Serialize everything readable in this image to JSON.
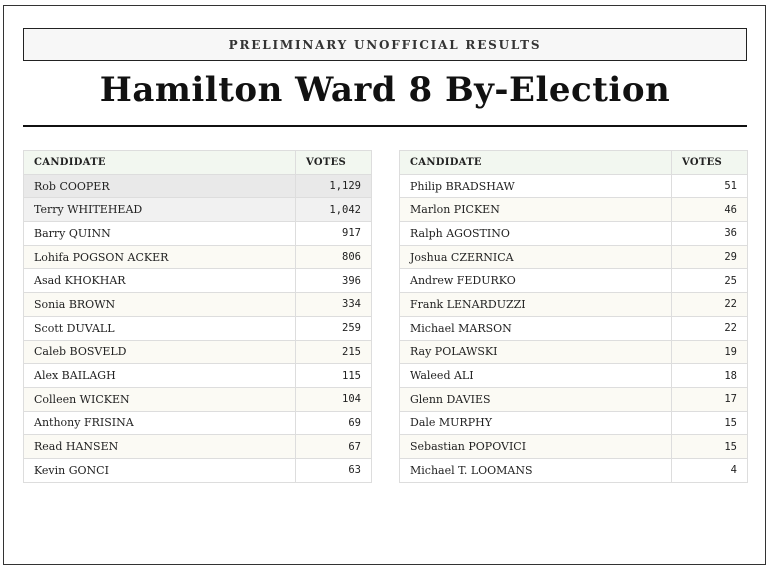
{
  "header": {
    "banner": "PRELIMINARY UNOFFICIAL RESULTS",
    "title": "Hamilton Ward 8 By-Election"
  },
  "tables": [
    {
      "columns": [
        "CANDIDATE",
        "VOTES"
      ],
      "rows": [
        [
          "Rob COOPER",
          "1,129"
        ],
        [
          "Terry WHITEHEAD",
          "1,042"
        ],
        [
          "Barry QUINN",
          "917"
        ],
        [
          "Lohifa POGSON ACKER",
          "806"
        ],
        [
          "Asad KHOKHAR",
          "396"
        ],
        [
          "Sonia BROWN",
          "334"
        ],
        [
          "Scott DUVALL",
          "259"
        ],
        [
          "Caleb BOSVELD",
          "215"
        ],
        [
          "Alex BAILAGH",
          "115"
        ],
        [
          "Colleen WICKEN",
          "104"
        ],
        [
          "Anthony FRISINA",
          "69"
        ],
        [
          "Read HANSEN",
          "67"
        ],
        [
          "Kevin GONCI",
          "63"
        ]
      ]
    },
    {
      "columns": [
        "CANDIDATE",
        "VOTES"
      ],
      "rows": [
        [
          "Philip BRADSHAW",
          "51"
        ],
        [
          "Marlon PICKEN",
          "46"
        ],
        [
          "Ralph AGOSTINO",
          "36"
        ],
        [
          "Joshua CZERNICA",
          "29"
        ],
        [
          "Andrew FEDURKO",
          "25"
        ],
        [
          "Frank LENARDUZZI",
          "22"
        ],
        [
          "Michael MARSON",
          "22"
        ],
        [
          "Ray POLAWSKI",
          "19"
        ],
        [
          "Waleed ALI",
          "18"
        ],
        [
          "Glenn DAVIES",
          "17"
        ],
        [
          "Dale MURPHY",
          "15"
        ],
        [
          "Sebastian POPOVICI",
          "15"
        ],
        [
          "Michael T. LOOMANS",
          "4"
        ]
      ]
    }
  ]
}
